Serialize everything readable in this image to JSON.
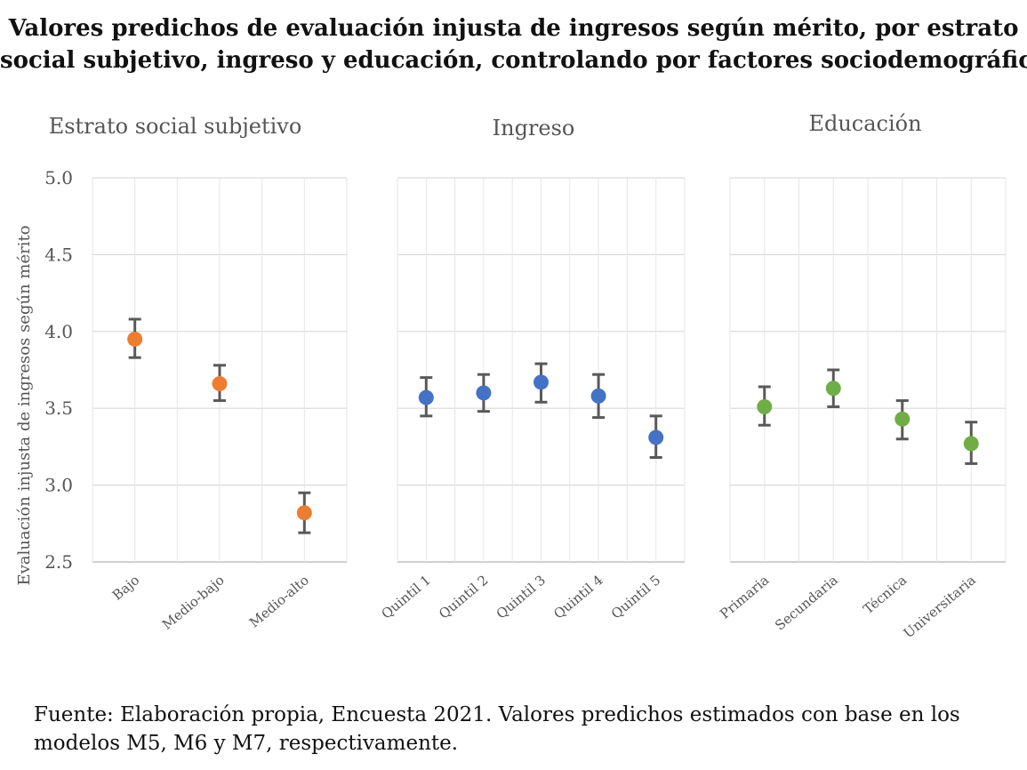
{
  "title_lines": [
    "Valores predichos de evaluación injusta de ingresos según mérito, por estrato",
    "social subjetivo, ingreso y educación, controlando por factores sociodemográficos"
  ],
  "source_lines": [
    "Fuente: Elaboración propia, Encuesta 2021. Valores predichos estimados con base en los",
    "modelos M5, M6 y M7, respectivamente."
  ],
  "chart_data": [
    {
      "type": "scatter",
      "title": "Estrato social subjetivo",
      "ylabel": "Evaluación injusta de ingresos según mérito",
      "ylim": [
        2.5,
        5.0
      ],
      "yticks": [
        "2.5",
        "3.0",
        "3.5",
        "4.0",
        "4.5",
        "5.0"
      ],
      "color": "#ED7D31",
      "categories": [
        "Bajo",
        "Medio-bajo",
        "Medio-alto"
      ],
      "values": [
        3.95,
        3.66,
        2.82
      ],
      "lower": [
        3.83,
        3.55,
        2.69
      ],
      "upper": [
        4.08,
        3.78,
        2.95
      ],
      "grid": true
    },
    {
      "type": "scatter",
      "title": "Ingreso",
      "ylim": [
        2.5,
        5.0
      ],
      "color": "#4472C4",
      "categories": [
        "Quintil 1",
        "Quintil 2",
        "Quintil 3",
        "Quintil 4",
        "Quintil 5"
      ],
      "values": [
        3.57,
        3.6,
        3.67,
        3.58,
        3.31
      ],
      "lower": [
        3.45,
        3.48,
        3.54,
        3.44,
        3.18
      ],
      "upper": [
        3.7,
        3.72,
        3.79,
        3.72,
        3.45
      ],
      "grid": true
    },
    {
      "type": "scatter",
      "title": "Educación",
      "ylim": [
        2.5,
        5.0
      ],
      "color": "#70AD47",
      "categories": [
        "Primaria",
        "Secundaria",
        "Técnica",
        "Universitaria"
      ],
      "values": [
        3.51,
        3.63,
        3.43,
        3.27
      ],
      "lower": [
        3.39,
        3.51,
        3.3,
        3.14
      ],
      "upper": [
        3.64,
        3.75,
        3.55,
        3.41
      ],
      "grid": true
    }
  ]
}
